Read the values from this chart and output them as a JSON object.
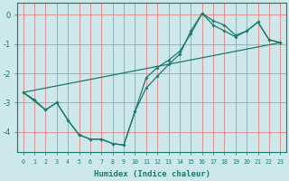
{
  "xlabel": "Humidex (Indice chaleur)",
  "bg_color": "#cce8ea",
  "line_color": "#1a7a6e",
  "grid_color": "#e88080",
  "xlim": [
    -0.5,
    23.5
  ],
  "ylim": [
    -4.7,
    0.4
  ],
  "yticks": [
    0,
    -1,
    -2,
    -3,
    -4
  ],
  "xticks": [
    0,
    1,
    2,
    3,
    4,
    5,
    6,
    7,
    8,
    9,
    10,
    11,
    12,
    13,
    14,
    15,
    16,
    17,
    18,
    19,
    20,
    21,
    22,
    23
  ],
  "curve_zigzag_x": [
    0,
    1,
    2,
    3,
    4,
    5,
    6,
    7,
    8,
    9,
    10,
    11,
    12,
    13,
    14,
    15,
    16,
    17,
    18,
    19,
    20,
    21,
    22,
    23
  ],
  "curve_zigzag_y": [
    -2.65,
    -2.9,
    -3.25,
    -3.0,
    -3.6,
    -4.1,
    -4.25,
    -4.25,
    -4.4,
    -4.45,
    -3.3,
    -2.5,
    -2.1,
    -1.7,
    -1.35,
    -0.55,
    0.05,
    -0.35,
    -0.55,
    -0.75,
    -0.55,
    -0.25,
    -0.85,
    -0.95
  ],
  "curve_smooth_x": [
    0,
    2,
    3,
    4,
    5,
    6,
    7,
    8,
    9,
    10,
    11,
    12,
    13,
    14,
    15,
    16,
    17,
    18,
    19,
    20,
    21,
    22,
    23
  ],
  "curve_smooth_y": [
    -2.65,
    -3.25,
    -3.0,
    -3.6,
    -4.1,
    -4.25,
    -4.25,
    -4.4,
    -4.45,
    -3.3,
    -2.15,
    -1.8,
    -1.55,
    -1.25,
    -0.65,
    0.05,
    -0.2,
    -0.35,
    -0.7,
    -0.55,
    -0.25,
    -0.85,
    -0.95
  ],
  "curve_line_x": [
    0,
    23
  ],
  "curve_line_y": [
    -2.65,
    -0.95
  ]
}
